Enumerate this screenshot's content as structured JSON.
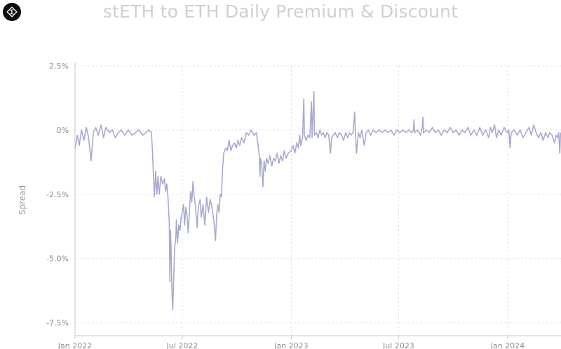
{
  "chart_data": {
    "type": "line",
    "title": "stETH to ETH Daily Premium & Discount",
    "ylabel": "Spread",
    "xlabel": "",
    "ylim": [
      -8.0,
      2.5
    ],
    "y_ticks": [
      2.5,
      0,
      -2.5,
      -5.0,
      -7.5
    ],
    "y_tick_labels": [
      "2.5%",
      "0%",
      "-2.5%",
      "-5.0%",
      "-7.5%"
    ],
    "x_range": [
      "2022-01-01",
      "2024-03-31"
    ],
    "x_ticks": [
      "2022-01-01",
      "2022-07-01",
      "2023-01-01",
      "2023-07-01",
      "2024-01-01"
    ],
    "x_tick_labels": [
      "Jan 2022",
      "Jul 2022",
      "Jan 2023",
      "Jul 2023",
      "Jan 2024"
    ],
    "grid": true,
    "legend": "none",
    "line_color": "#a9a9cf",
    "series": [
      {
        "values": [
          [
            "2022-01-01",
            -0.7
          ],
          [
            "2022-01-05",
            -0.2
          ],
          [
            "2022-01-08",
            -0.6
          ],
          [
            "2022-01-12",
            0.0
          ],
          [
            "2022-01-16",
            -0.4
          ],
          [
            "2022-01-20",
            0.1
          ],
          [
            "2022-01-24",
            -0.3
          ],
          [
            "2022-01-28",
            -1.2
          ],
          [
            "2022-02-01",
            -0.1
          ],
          [
            "2022-02-05",
            0.1
          ],
          [
            "2022-02-09",
            -0.2
          ],
          [
            "2022-02-14",
            0.2
          ],
          [
            "2022-02-18",
            -0.3
          ],
          [
            "2022-02-22",
            0.1
          ],
          [
            "2022-02-28",
            -0.1
          ],
          [
            "2022-03-05",
            0.0
          ],
          [
            "2022-03-10",
            -0.3
          ],
          [
            "2022-03-15",
            -0.1
          ],
          [
            "2022-03-20",
            0.0
          ],
          [
            "2022-03-26",
            -0.2
          ],
          [
            "2022-04-01",
            0.0
          ],
          [
            "2022-04-07",
            -0.2
          ],
          [
            "2022-04-13",
            -0.1
          ],
          [
            "2022-04-19",
            0.0
          ],
          [
            "2022-04-25",
            -0.2
          ],
          [
            "2022-05-01",
            -0.1
          ],
          [
            "2022-05-06",
            0.0
          ],
          [
            "2022-05-10",
            -0.1
          ],
          [
            "2022-05-12",
            -1.0
          ],
          [
            "2022-05-13",
            -1.6
          ],
          [
            "2022-05-15",
            -2.6
          ],
          [
            "2022-05-17",
            -1.6
          ],
          [
            "2022-05-19",
            -2.5
          ],
          [
            "2022-05-21",
            -1.8
          ],
          [
            "2022-05-23",
            -2.5
          ],
          [
            "2022-05-26",
            -1.8
          ],
          [
            "2022-05-29",
            -2.1
          ],
          [
            "2022-06-01",
            -1.9
          ],
          [
            "2022-06-03",
            -2.4
          ],
          [
            "2022-06-05",
            -2.1
          ],
          [
            "2022-06-07",
            -2.7
          ],
          [
            "2022-06-09",
            -3.6
          ],
          [
            "2022-06-10",
            -5.9
          ],
          [
            "2022-06-11",
            -3.9
          ],
          [
            "2022-06-12",
            -4.5
          ],
          [
            "2022-06-13",
            -5.8
          ],
          [
            "2022-06-14",
            -6.6
          ],
          [
            "2022-06-15",
            -7.0
          ],
          [
            "2022-06-16",
            -6.1
          ],
          [
            "2022-06-18",
            -4.6
          ],
          [
            "2022-06-20",
            -4.2
          ],
          [
            "2022-06-21",
            -3.5
          ],
          [
            "2022-06-23",
            -4.4
          ],
          [
            "2022-06-25",
            -3.7
          ],
          [
            "2022-06-27",
            -3.9
          ],
          [
            "2022-06-29",
            -3.4
          ],
          [
            "2022-07-01",
            -3.2
          ],
          [
            "2022-07-03",
            -2.9
          ],
          [
            "2022-07-05",
            -3.7
          ],
          [
            "2022-07-07",
            -3.0
          ],
          [
            "2022-07-09",
            -3.3
          ],
          [
            "2022-07-11",
            -4.0
          ],
          [
            "2022-07-13",
            -3.2
          ],
          [
            "2022-07-15",
            -2.4
          ],
          [
            "2022-07-17",
            -2.8
          ],
          [
            "2022-07-19",
            -2.0
          ],
          [
            "2022-07-21",
            -2.6
          ],
          [
            "2022-07-23",
            -2.9
          ],
          [
            "2022-07-26",
            -3.8
          ],
          [
            "2022-07-28",
            -3.0
          ],
          [
            "2022-07-31",
            -2.7
          ],
          [
            "2022-08-02",
            -3.4
          ],
          [
            "2022-08-05",
            -2.9
          ],
          [
            "2022-08-08",
            -3.7
          ],
          [
            "2022-08-11",
            -2.6
          ],
          [
            "2022-08-14",
            -3.2
          ],
          [
            "2022-08-17",
            -2.7
          ],
          [
            "2022-08-20",
            -3.0
          ],
          [
            "2022-08-23",
            -3.5
          ],
          [
            "2022-08-26",
            -4.3
          ],
          [
            "2022-08-28",
            -3.3
          ],
          [
            "2022-08-30",
            -2.9
          ],
          [
            "2022-09-01",
            -3.2
          ],
          [
            "2022-09-03",
            -2.5
          ],
          [
            "2022-09-05",
            -2.6
          ],
          [
            "2022-09-07",
            -1.5
          ],
          [
            "2022-09-09",
            -0.9
          ],
          [
            "2022-09-12",
            -0.7
          ],
          [
            "2022-09-15",
            -0.8
          ],
          [
            "2022-09-18",
            -0.4
          ],
          [
            "2022-09-21",
            -0.8
          ],
          [
            "2022-09-24",
            -0.6
          ],
          [
            "2022-09-27",
            -0.5
          ],
          [
            "2022-09-30",
            -0.7
          ],
          [
            "2022-10-03",
            -0.4
          ],
          [
            "2022-10-06",
            -0.6
          ],
          [
            "2022-10-09",
            -0.3
          ],
          [
            "2022-10-13",
            -0.5
          ],
          [
            "2022-10-17",
            -0.1
          ],
          [
            "2022-10-21",
            -0.2
          ],
          [
            "2022-10-25",
            0.0
          ],
          [
            "2022-10-30",
            -0.2
          ],
          [
            "2022-11-03",
            -0.1
          ],
          [
            "2022-11-06",
            -0.6
          ],
          [
            "2022-11-08",
            -1.0
          ],
          [
            "2022-11-09",
            -1.8
          ],
          [
            "2022-11-10",
            -1.1
          ],
          [
            "2022-11-12",
            -1.3
          ],
          [
            "2022-11-14",
            -2.2
          ],
          [
            "2022-11-16",
            -1.2
          ],
          [
            "2022-11-18",
            -1.6
          ],
          [
            "2022-11-20",
            -1.1
          ],
          [
            "2022-11-23",
            -1.3
          ],
          [
            "2022-11-26",
            -1.0
          ],
          [
            "2022-11-29",
            -1.4
          ],
          [
            "2022-12-02",
            -1.1
          ],
          [
            "2022-12-05",
            -1.2
          ],
          [
            "2022-12-08",
            -0.9
          ],
          [
            "2022-12-11",
            -1.3
          ],
          [
            "2022-12-14",
            -1.0
          ],
          [
            "2022-12-17",
            -1.2
          ],
          [
            "2022-12-20",
            -0.8
          ],
          [
            "2022-12-23",
            -1.1
          ],
          [
            "2022-12-27",
            -0.9
          ],
          [
            "2023-01-01",
            -0.8
          ],
          [
            "2023-01-04",
            -0.6
          ],
          [
            "2023-01-07",
            -0.9
          ],
          [
            "2023-01-10",
            -0.5
          ],
          [
            "2023-01-13",
            -0.7
          ],
          [
            "2023-01-15",
            -0.2
          ],
          [
            "2023-01-17",
            -0.6
          ],
          [
            "2023-01-20",
            -0.3
          ],
          [
            "2023-01-22",
            1.2
          ],
          [
            "2023-01-23",
            -0.2
          ],
          [
            "2023-01-26",
            -0.4
          ],
          [
            "2023-01-29",
            -0.2
          ],
          [
            "2023-02-01",
            -0.3
          ],
          [
            "2023-02-04",
            1.1
          ],
          [
            "2023-02-05",
            -0.3
          ],
          [
            "2023-02-08",
            1.5
          ],
          [
            "2023-02-09",
            -0.2
          ],
          [
            "2023-02-12",
            -0.1
          ],
          [
            "2023-02-15",
            -0.3
          ],
          [
            "2023-02-18",
            0.0
          ],
          [
            "2023-02-21",
            -0.2
          ],
          [
            "2023-02-24",
            -0.1
          ],
          [
            "2023-02-27",
            -0.3
          ],
          [
            "2023-03-02",
            -0.1
          ],
          [
            "2023-03-05",
            -0.2
          ],
          [
            "2023-03-08",
            -0.9
          ],
          [
            "2023-03-10",
            -0.3
          ],
          [
            "2023-03-13",
            -0.2
          ],
          [
            "2023-03-16",
            -0.1
          ],
          [
            "2023-03-20",
            -0.3
          ],
          [
            "2023-03-23",
            -0.1
          ],
          [
            "2023-03-27",
            -0.2
          ],
          [
            "2023-03-30",
            -0.4
          ],
          [
            "2023-04-03",
            -0.1
          ],
          [
            "2023-04-06",
            -0.3
          ],
          [
            "2023-04-09",
            -0.1
          ],
          [
            "2023-04-12",
            -0.2
          ],
          [
            "2023-04-15",
            -0.1
          ],
          [
            "2023-04-18",
            0.7
          ],
          [
            "2023-04-19",
            -0.1
          ],
          [
            "2023-04-21",
            -0.9
          ],
          [
            "2023-04-24",
            -0.1
          ],
          [
            "2023-04-27",
            -0.3
          ],
          [
            "2023-04-30",
            0.0
          ],
          [
            "2023-05-04",
            -0.6
          ],
          [
            "2023-05-07",
            -0.1
          ],
          [
            "2023-05-11",
            0.0
          ],
          [
            "2023-05-15",
            -0.2
          ],
          [
            "2023-05-19",
            0.0
          ],
          [
            "2023-05-24",
            -0.1
          ],
          [
            "2023-05-29",
            0.0
          ],
          [
            "2023-06-03",
            -0.1
          ],
          [
            "2023-06-08",
            0.0
          ],
          [
            "2023-06-13",
            -0.1
          ],
          [
            "2023-06-18",
            0.0
          ],
          [
            "2023-06-23",
            -0.2
          ],
          [
            "2023-06-28",
            0.0
          ],
          [
            "2023-07-03",
            -0.1
          ],
          [
            "2023-07-08",
            0.0
          ],
          [
            "2023-07-13",
            -0.1
          ],
          [
            "2023-07-18",
            0.0
          ],
          [
            "2023-07-23",
            -0.1
          ],
          [
            "2023-07-26",
            0.0
          ],
          [
            "2023-07-27",
            0.4
          ],
          [
            "2023-07-28",
            -0.1
          ],
          [
            "2023-08-02",
            0.0
          ],
          [
            "2023-08-07",
            -0.2
          ],
          [
            "2023-08-10",
            0.1
          ],
          [
            "2023-08-11",
            0.5
          ],
          [
            "2023-08-12",
            -0.1
          ],
          [
            "2023-08-17",
            0.0
          ],
          [
            "2023-08-22",
            -0.1
          ],
          [
            "2023-08-27",
            0.1
          ],
          [
            "2023-09-01",
            -0.1
          ],
          [
            "2023-09-06",
            0.0
          ],
          [
            "2023-09-11",
            -0.2
          ],
          [
            "2023-09-16",
            0.0
          ],
          [
            "2023-09-21",
            -0.1
          ],
          [
            "2023-09-26",
            0.1
          ],
          [
            "2023-10-01",
            -0.1
          ],
          [
            "2023-10-06",
            0.0
          ],
          [
            "2023-10-11",
            -0.2
          ],
          [
            "2023-10-16",
            0.0
          ],
          [
            "2023-10-21",
            -0.1
          ],
          [
            "2023-10-26",
            0.1
          ],
          [
            "2023-10-31",
            -0.2
          ],
          [
            "2023-11-05",
            0.0
          ],
          [
            "2023-11-10",
            -0.2
          ],
          [
            "2023-11-15",
            0.1
          ],
          [
            "2023-11-20",
            -0.2
          ],
          [
            "2023-11-25",
            0.0
          ],
          [
            "2023-11-30",
            -0.3
          ],
          [
            "2023-12-03",
            0.1
          ],
          [
            "2023-12-06",
            -0.1
          ],
          [
            "2023-12-10",
            0.2
          ],
          [
            "2023-12-13",
            -0.3
          ],
          [
            "2023-12-17",
            0.0
          ],
          [
            "2023-12-21",
            -0.2
          ],
          [
            "2023-12-26",
            0.1
          ],
          [
            "2023-12-31",
            -0.1
          ],
          [
            "2024-01-03",
            0.0
          ],
          [
            "2024-01-05",
            -0.7
          ],
          [
            "2024-01-07",
            -0.1
          ],
          [
            "2024-01-12",
            0.0
          ],
          [
            "2024-01-17",
            -0.2
          ],
          [
            "2024-01-22",
            0.0
          ],
          [
            "2024-01-27",
            -0.3
          ],
          [
            "2024-02-01",
            -0.1
          ],
          [
            "2024-02-06",
            0.1
          ],
          [
            "2024-02-10",
            -0.2
          ],
          [
            "2024-02-14",
            0.2
          ],
          [
            "2024-02-18",
            -0.1
          ],
          [
            "2024-02-22",
            -0.3
          ],
          [
            "2024-02-26",
            -0.1
          ],
          [
            "2024-03-01",
            -0.4
          ],
          [
            "2024-03-05",
            -0.1
          ],
          [
            "2024-03-09",
            -0.3
          ],
          [
            "2024-03-12",
            -0.1
          ],
          [
            "2024-03-16",
            -0.2
          ],
          [
            "2024-03-20",
            -0.5
          ],
          [
            "2024-03-23",
            -0.2
          ],
          [
            "2024-03-25",
            -0.3
          ],
          [
            "2024-03-27",
            -0.1
          ],
          [
            "2024-03-29",
            -0.9
          ],
          [
            "2024-03-30",
            -0.2
          ],
          [
            "2024-03-31",
            -0.1
          ]
        ]
      }
    ]
  }
}
